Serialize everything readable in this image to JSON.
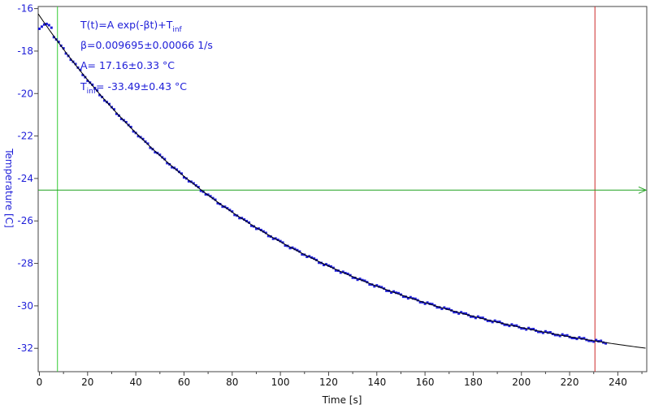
{
  "chart_data": {
    "type": "scatter",
    "title": "",
    "xlabel": "Time [s]",
    "ylabel": "Temperature [C]",
    "xlim": [
      -0.5,
      252
    ],
    "ylim": [
      -33.1,
      -15.9
    ],
    "x_ticks": [
      0,
      20,
      40,
      60,
      80,
      100,
      120,
      140,
      160,
      180,
      200,
      220,
      240
    ],
    "y_ticks": [
      -32,
      -30,
      -28,
      -26,
      -24,
      -22,
      -20,
      -18,
      -16
    ],
    "grid": false,
    "legend": "none",
    "colors": {
      "data_points": "#1d1dd8",
      "fit_line": "#000000",
      "green_markers": "#1fa11f",
      "start_marker": "#33cc33",
      "end_marker": "#cc2a2a",
      "axis_text": "#1d1dd8"
    },
    "fit": {
      "model": "exponential",
      "A": 17.16,
      "beta": 0.009695,
      "T_inf": -33.49
    },
    "data_series": {
      "name": "",
      "t_min": 0,
      "t_max": 235,
      "step": 1
    },
    "markers": {
      "start_vline_x": 7.5,
      "end_vline_x": 230.5,
      "hline_y": -24.55
    },
    "annotations": {
      "line1_main": "T(t)=A exp(-βt)+T",
      "line1_sub": "inf",
      "line2": "β=0.009695±0.00066 1/s",
      "line3": "A= 17.16±0.33 °C",
      "line4_pre": "T",
      "line4_sub": "inf",
      "line4_main": "= -33.49±0.43 °C"
    }
  }
}
